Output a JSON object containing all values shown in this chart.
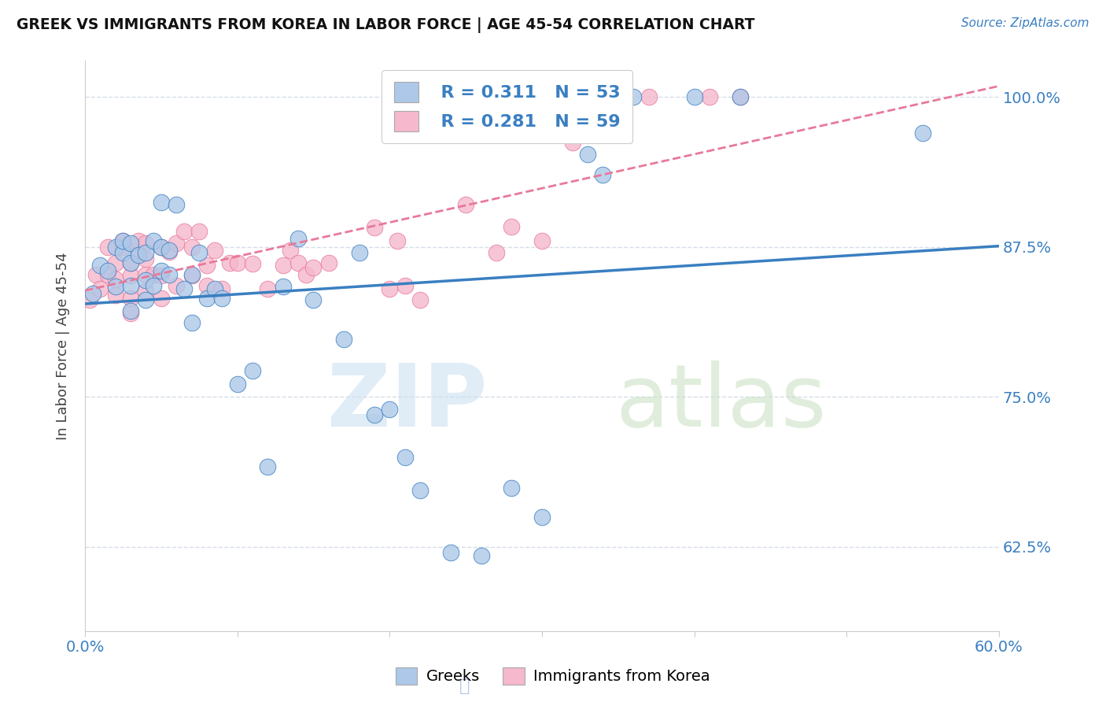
{
  "title": "GREEK VS IMMIGRANTS FROM KOREA IN LABOR FORCE | AGE 45-54 CORRELATION CHART",
  "source": "Source: ZipAtlas.com",
  "ylabel": "In Labor Force | Age 45-54",
  "xmin": 0.0,
  "xmax": 0.6,
  "ymin": 0.555,
  "ymax": 1.03,
  "yticks": [
    0.625,
    0.75,
    0.875,
    1.0
  ],
  "ytick_labels": [
    "62.5%",
    "75.0%",
    "87.5%",
    "100.0%"
  ],
  "legend_r_greek": "0.311",
  "legend_n_greek": "53",
  "legend_r_korean": "0.281",
  "legend_n_korean": "59",
  "greek_color": "#adc8e8",
  "korean_color": "#f5b8cc",
  "trendline_greek_color": "#3a7fc1",
  "trendline_korean_color": "#e8799a",
  "background_color": "#ffffff",
  "grid_color": "#d5dde8",
  "greek_scatter": {
    "x": [
      0.005,
      0.01,
      0.015,
      0.02,
      0.02,
      0.025,
      0.025,
      0.03,
      0.03,
      0.03,
      0.03,
      0.035,
      0.04,
      0.04,
      0.04,
      0.045,
      0.045,
      0.05,
      0.05,
      0.05,
      0.055,
      0.055,
      0.06,
      0.065,
      0.07,
      0.07,
      0.075,
      0.08,
      0.085,
      0.09,
      0.1,
      0.11,
      0.12,
      0.13,
      0.14,
      0.15,
      0.17,
      0.18,
      0.19,
      0.2,
      0.21,
      0.22,
      0.24,
      0.26,
      0.28,
      0.3,
      0.33,
      0.34,
      0.35,
      0.36,
      0.4,
      0.43,
      0.55
    ],
    "y": [
      0.836,
      0.86,
      0.855,
      0.842,
      0.875,
      0.87,
      0.88,
      0.822,
      0.843,
      0.862,
      0.878,
      0.868,
      0.831,
      0.847,
      0.87,
      0.843,
      0.88,
      0.855,
      0.875,
      0.912,
      0.852,
      0.872,
      0.91,
      0.84,
      0.812,
      0.852,
      0.87,
      0.832,
      0.84,
      0.832,
      0.761,
      0.772,
      0.692,
      0.842,
      0.882,
      0.831,
      0.798,
      0.87,
      0.735,
      0.74,
      0.7,
      0.672,
      0.62,
      0.618,
      0.674,
      0.65,
      0.952,
      0.935,
      1.0,
      1.0,
      1.0,
      1.0,
      0.97
    ]
  },
  "korean_scatter": {
    "x": [
      0.003,
      0.007,
      0.01,
      0.015,
      0.015,
      0.02,
      0.02,
      0.02,
      0.025,
      0.025,
      0.03,
      0.03,
      0.03,
      0.03,
      0.035,
      0.035,
      0.04,
      0.04,
      0.04,
      0.04,
      0.045,
      0.05,
      0.05,
      0.05,
      0.055,
      0.06,
      0.06,
      0.065,
      0.07,
      0.07,
      0.075,
      0.08,
      0.08,
      0.085,
      0.09,
      0.095,
      0.1,
      0.11,
      0.12,
      0.13,
      0.135,
      0.14,
      0.145,
      0.15,
      0.16,
      0.19,
      0.2,
      0.205,
      0.21,
      0.22,
      0.25,
      0.27,
      0.28,
      0.3,
      0.32,
      0.35,
      0.37,
      0.41,
      0.43
    ],
    "y": [
      0.831,
      0.852,
      0.84,
      0.852,
      0.875,
      0.835,
      0.848,
      0.862,
      0.875,
      0.88,
      0.82,
      0.832,
      0.851,
      0.862,
      0.87,
      0.88,
      0.838,
      0.852,
      0.865,
      0.878,
      0.852,
      0.832,
      0.851,
      0.875,
      0.871,
      0.843,
      0.878,
      0.888,
      0.851,
      0.875,
      0.888,
      0.843,
      0.86,
      0.872,
      0.84,
      0.862,
      0.862,
      0.861,
      0.84,
      0.86,
      0.872,
      0.862,
      0.852,
      0.858,
      0.862,
      0.891,
      0.84,
      0.88,
      0.843,
      0.831,
      0.91,
      0.87,
      0.892,
      0.88,
      0.962,
      1.0,
      1.0,
      1.0,
      1.0
    ]
  }
}
